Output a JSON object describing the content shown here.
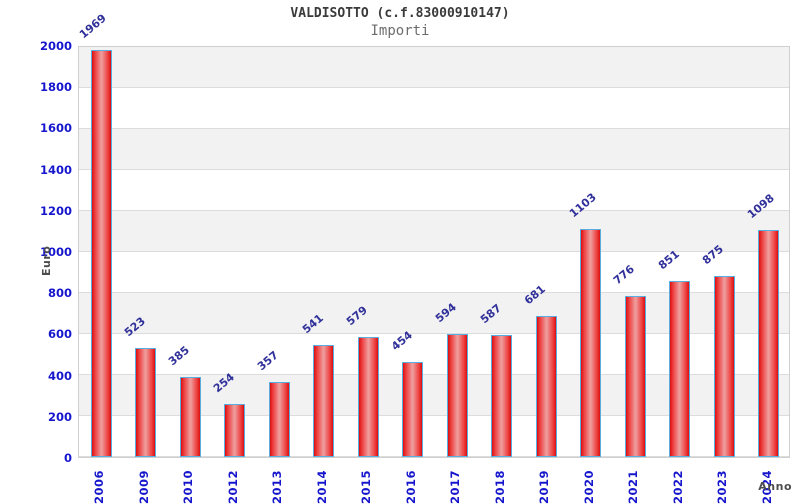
{
  "header": {
    "title": "VALDISOTTO (c.f.83000910147)",
    "subtitle": "Importi"
  },
  "chart_data": {
    "type": "bar",
    "title": "VALDISOTTO (c.f.83000910147)",
    "subtitle": "Importi",
    "xlabel": "Anno",
    "ylabel": "Euro",
    "categories": [
      "2006",
      "2009",
      "2010",
      "2012",
      "2013",
      "2014",
      "2015",
      "2016",
      "2017",
      "2018",
      "2019",
      "2020",
      "2021",
      "2022",
      "2023",
      "2024"
    ],
    "values": [
      1969,
      523,
      385,
      254,
      357,
      541,
      579,
      454,
      594,
      587,
      681,
      1103,
      776,
      851,
      875,
      1098
    ],
    "ylim": [
      0,
      2000
    ],
    "ytick_step": 200,
    "grid": "horizontal",
    "legend_position": "none",
    "colors": {
      "bar_edge": "#dd0f0f",
      "bar_mid": "#efa0a0",
      "bar_border": "#58aee0",
      "tick_label": "#1616cd",
      "value_label": "#30309a",
      "axis_title": "#4d4d4d",
      "band_fill": "#f2f2f2",
      "gridline": "#dcdcdc",
      "plot_border": "#cfcfcf",
      "title_color": "#3a3a3a",
      "subtitle_color": "#6e6e6e"
    }
  }
}
